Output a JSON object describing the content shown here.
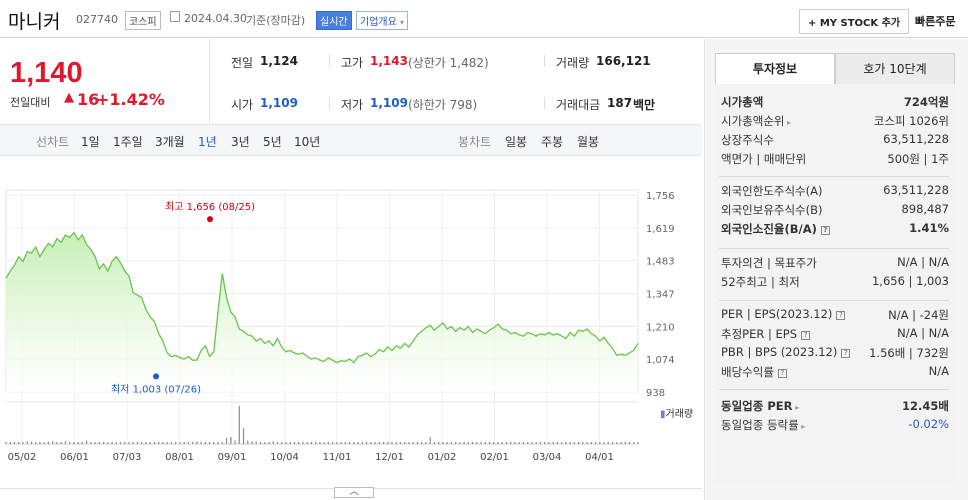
{
  "header": {
    "name": "마니커",
    "code": "027740",
    "market": "코스피",
    "date": "2024.04.30",
    "basis": "기준(장마감)",
    "realtime": "실시간",
    "company_info": "기업개요",
    "mystock": "+ MY STOCK 추가",
    "quick_order": "빠른주문"
  },
  "price": {
    "current": "1,140",
    "change_label": "전일대비",
    "change": "16",
    "change_pct": "+1.42%"
  },
  "summary": {
    "prev_label": "전일",
    "prev": "1,124",
    "high_label": "고가",
    "high": "1,143",
    "upper_limit": "(상한가 1,482)",
    "volume_label": "거래량",
    "volume": "166,121",
    "open_label": "시가",
    "open": "1,109",
    "low_label": "저가",
    "low": "1,109",
    "lower_limit": "(하한가 798)",
    "amount_label": "거래대금",
    "amount": "187",
    "amount_unit": "백만"
  },
  "periods": {
    "line_label": "선차트",
    "items": [
      "1일",
      "1주일",
      "3개월",
      "1년",
      "3년",
      "5년",
      "10년"
    ],
    "active": "1년",
    "candle_label": "봉차트",
    "candle_items": [
      "일봉",
      "주봉",
      "월봉"
    ]
  },
  "chart_data": {
    "type": "area",
    "x_ticks": [
      "05/02",
      "06/01",
      "07/03",
      "08/01",
      "09/01",
      "10/04",
      "11/01",
      "12/01",
      "01/02",
      "02/01",
      "03/04",
      "04/01"
    ],
    "y_ticks": [
      "1,756",
      "1,619",
      "1,483",
      "1,347",
      "1,210",
      "1,074",
      "938"
    ],
    "ylim": [
      938,
      1756
    ],
    "series": [
      {
        "values": [
          1410,
          1440,
          1465,
          1500,
          1480,
          1520,
          1515,
          1540,
          1500,
          1530,
          1555,
          1540,
          1575,
          1560,
          1590,
          1580,
          1600,
          1570,
          1590,
          1550,
          1530,
          1500,
          1450,
          1470,
          1440,
          1480,
          1500,
          1475,
          1440,
          1420,
          1350,
          1340,
          1330,
          1280,
          1250,
          1230,
          1180,
          1150,
          1100,
          1085,
          1090,
          1080,
          1075,
          1085,
          1070,
          1070,
          1110,
          1130,
          1085,
          1105,
          1275,
          1430,
          1330,
          1270,
          1250,
          1200,
          1190,
          1175,
          1170,
          1150,
          1160,
          1140,
          1150,
          1130,
          1160,
          1125,
          1105,
          1110,
          1100,
          1095,
          1100,
          1085,
          1075,
          1080,
          1070,
          1065,
          1080,
          1070,
          1060,
          1068,
          1065,
          1075,
          1060,
          1085,
          1090,
          1100,
          1085,
          1095,
          1115,
          1105,
          1125,
          1110,
          1130,
          1120,
          1140,
          1125,
          1150,
          1175,
          1190,
          1205,
          1215,
          1195,
          1210,
          1225,
          1200,
          1210,
          1190,
          1205,
          1195,
          1210,
          1185,
          1200,
          1190,
          1180,
          1195,
          1205,
          1220,
          1200,
          1195,
          1180,
          1185,
          1175,
          1170,
          1185,
          1180,
          1170,
          1180,
          1175,
          1185,
          1175,
          1180,
          1170,
          1160,
          1185,
          1170,
          1195,
          1190,
          1200,
          1180,
          1170,
          1150,
          1165,
          1140,
          1120,
          1090,
          1095,
          1090,
          1100,
          1112,
          1140
        ]
      }
    ],
    "annotations": {
      "high": "최고 1,656 (08/25)",
      "low": "최저 1,003 (07/26)",
      "high_value": 1656,
      "low_value": 1003
    },
    "volume_label": "거래량",
    "volume": [
      3,
      3,
      3,
      3,
      3,
      4,
      3,
      3,
      3,
      3,
      3,
      4,
      3,
      3,
      4,
      3,
      3,
      3,
      3,
      5,
      3,
      3,
      3,
      3,
      3,
      3,
      3,
      3,
      3,
      3,
      3,
      3,
      3,
      3,
      3,
      3,
      3,
      3,
      3,
      3,
      3,
      3,
      3,
      3,
      3,
      4,
      3,
      3,
      3,
      3,
      3,
      3,
      9,
      10,
      5,
      55,
      23,
      5,
      4,
      4,
      3,
      3,
      3,
      4,
      3,
      3,
      3,
      3,
      3,
      3,
      3,
      3,
      3,
      3,
      3,
      3,
      3,
      3,
      3,
      3,
      3,
      3,
      3,
      3,
      3,
      3,
      3,
      3,
      3,
      3,
      3,
      3,
      3,
      3,
      3,
      3,
      3,
      3,
      3,
      3,
      10,
      3,
      3,
      3,
      3,
      3,
      3,
      3,
      3,
      3,
      3,
      3,
      3,
      3,
      3,
      3,
      3,
      3,
      3,
      3,
      3,
      3,
      3,
      3,
      3,
      3,
      3,
      3,
      3,
      3,
      3,
      3,
      3,
      3,
      3,
      3,
      3,
      3,
      3,
      3,
      3,
      3,
      3,
      3,
      3,
      3,
      3,
      3,
      3,
      3
    ],
    "area_color": "#c5efb4",
    "line_color": "#6cc34a",
    "high_color": "#d7000f",
    "low_color": "#1a5ec8"
  },
  "right_panel": {
    "tabs": [
      "투자정보",
      "호가 10단계"
    ],
    "active_tab": "투자정보",
    "rows": [
      {
        "k": "시가총액",
        "v": "724억원",
        "bold": true
      },
      {
        "k": "시가총액순위",
        "v": "코스피 1026위",
        "arrow": true
      },
      {
        "k": "상장주식수",
        "v": "63,511,228"
      },
      {
        "k": "액면가 | 매매단위",
        "v": "500원 | 1주"
      },
      {
        "k": "외국인한도주식수(A)",
        "v": "63,511,228"
      },
      {
        "k": "외국인보유주식수(B)",
        "v": "898,487"
      },
      {
        "k": "외국인소진율(B/A)",
        "v": "1.41%",
        "bold": true,
        "q": true
      },
      {
        "k": "투자의견 | 목표주가",
        "v": "N/A | N/A"
      },
      {
        "k": "52주최고 | 최저",
        "v": "1,656 | 1,003"
      },
      {
        "k": "PER | EPS(2023.12)",
        "v": "N/A | -24원",
        "q": true
      },
      {
        "k": "추정PER | EPS",
        "v": "N/A | N/A",
        "q": true
      },
      {
        "k": "PBR | BPS (2023.12)",
        "v": "1.56배 | 732원",
        "q": true
      },
      {
        "k": "배당수익률",
        "v": "N/A",
        "q": true
      },
      {
        "k": "동일업종 PER",
        "v": "12.45배",
        "bold": true,
        "arrow": true
      },
      {
        "k": "동일업종 등락률",
        "v": "-0.02%",
        "arrow": true,
        "blue": true
      }
    ]
  },
  "collapse_icon": "chevron-up-icon"
}
